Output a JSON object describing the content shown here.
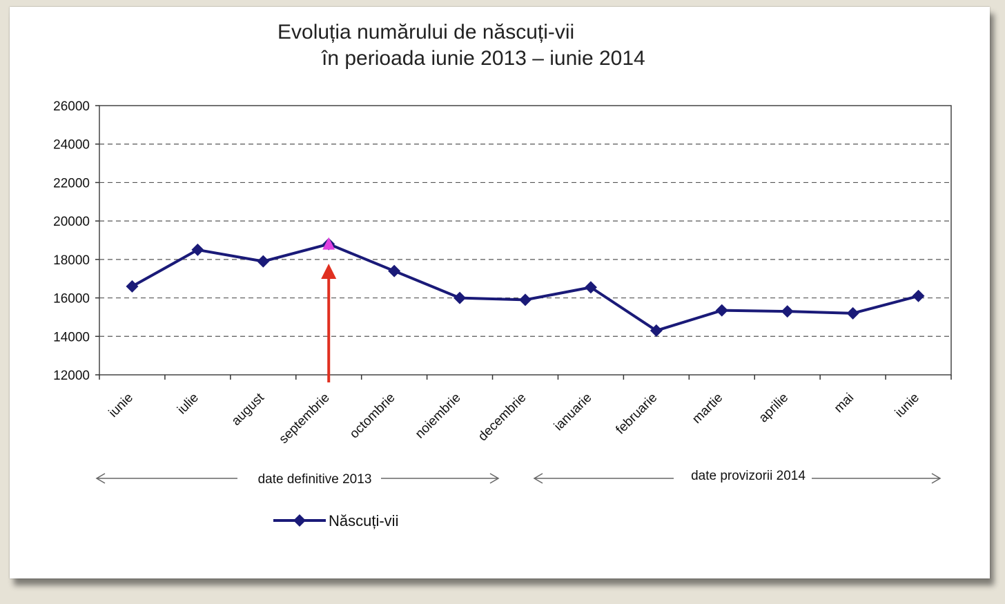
{
  "chart_data": {
    "type": "line",
    "title_line1": "Evoluția numărului de născuți-vii",
    "title_line2": "în perioada iunie 2013 – iunie 2014",
    "categories": [
      "iunie",
      "iulie",
      "august",
      "septembrie",
      "octombrie",
      "noiembrie",
      "decembrie",
      "ianuarie",
      "februarie",
      "martie",
      "aprilie",
      "mai",
      "iunie"
    ],
    "series": [
      {
        "name": "Născuți-vii",
        "values": [
          16600,
          18500,
          17900,
          18800,
          17400,
          16000,
          15900,
          16550,
          14300,
          15350,
          15300,
          15200,
          16100
        ]
      }
    ],
    "ylim": [
      12000,
      26000
    ],
    "yticks": [
      "26000",
      "24000",
      "22000",
      "20000",
      "18000",
      "16000",
      "14000",
      "12000"
    ],
    "grid": "dashed horizontal",
    "legend_position": "bottom-left",
    "highlight_index": 3,
    "periods": [
      {
        "label": "date definitive 2013"
      },
      {
        "label": "date provizorii 2014"
      }
    ],
    "colors": {
      "series": "#1a1a78",
      "highlight_marker": "#e040e0",
      "arrow": "#e03020",
      "grid": "#555555"
    }
  }
}
